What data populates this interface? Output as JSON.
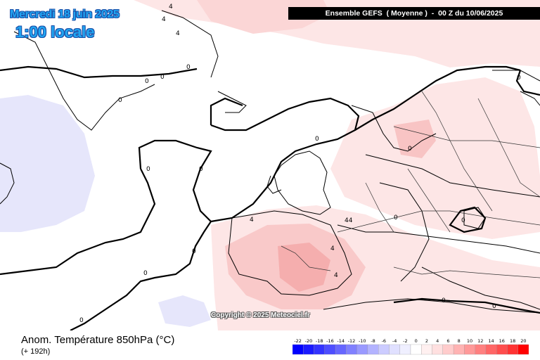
{
  "header": {
    "date": "Mercredi 18 juin 2025",
    "local_time": "1:00 locale",
    "run_info": "Ensemble GEFS  ( Moyenne )  -  00 Z du 10/06/2025"
  },
  "copyright": "Copyright © 2025 Meteociel.fr",
  "footer": {
    "field": "Anom. Température 850hPa (°C)",
    "lead": "(+ 192h)"
  },
  "contour_labels": [
    "4",
    "4",
    "0",
    "0",
    "0",
    "0",
    "0",
    "0",
    "0",
    "0",
    "4",
    "0",
    "44",
    "4",
    "4",
    "4",
    "0",
    "0",
    "0",
    "0",
    "0",
    "0",
    "0"
  ],
  "legend": {
    "ticks": [
      "-22",
      "-20",
      "-18",
      "-16",
      "-14",
      "-12",
      "-10",
      "-8",
      "-6",
      "-4",
      "-2",
      "0",
      "2",
      "4",
      "6",
      "8",
      "10",
      "12",
      "14",
      "16",
      "18",
      "20"
    ],
    "colors": [
      "#0000ff",
      "#1a1aff",
      "#3333ff",
      "#4d4dff",
      "#6666ff",
      "#8080ff",
      "#9999ff",
      "#b3b3ff",
      "#ccccff",
      "#e0e0ff",
      "#efefff",
      "#ffffff",
      "#fff0f0",
      "#ffe0e0",
      "#ffcccc",
      "#ffb3b3",
      "#ff9999",
      "#ff8080",
      "#ff6666",
      "#ff4d4d",
      "#ff3333",
      "#ff0000"
    ]
  }
}
